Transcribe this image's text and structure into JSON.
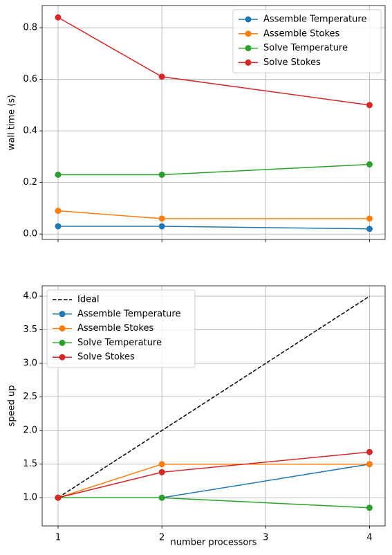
{
  "chart_data": [
    {
      "type": "line",
      "ylabel": "wall time (s)",
      "x": [
        1,
        2,
        4
      ],
      "xlim": [
        0.847,
        4.15
      ],
      "xticks": [
        1,
        2,
        3,
        4
      ],
      "xtick_labels": false,
      "ylim": [
        -0.021,
        0.886
      ],
      "yticks": [
        {
          "value": 0,
          "label": "0.0"
        },
        0.2,
        0.4,
        0.6,
        0.8
      ],
      "grid": true,
      "legend": "upper right",
      "series": [
        {
          "name": "Assemble Temperature",
          "color": "#1f77b4",
          "marker": "o",
          "values": [
            0.03,
            0.03,
            0.02
          ]
        },
        {
          "name": "Assemble Stokes",
          "color": "#ff7f0e",
          "marker": "o",
          "values": [
            0.09,
            0.06,
            0.06
          ]
        },
        {
          "name": "Solve Temperature",
          "color": "#2ca02c",
          "marker": "o",
          "values": [
            0.23,
            0.23,
            0.27
          ]
        },
        {
          "name": "Solve Stokes",
          "color": "#d62728",
          "marker": "o",
          "values": [
            0.84,
            0.61,
            0.5
          ]
        }
      ]
    },
    {
      "type": "line",
      "ylabel": "speed up",
      "xlabel": "number processors",
      "x": [
        1,
        2,
        4
      ],
      "xlim": [
        0.847,
        4.15
      ],
      "xticks": [
        1,
        2,
        3,
        4
      ],
      "xtick_labels": true,
      "ylim": [
        0.58,
        4.155
      ],
      "yticks": [
        {
          "value": 1,
          "label": "1.0"
        },
        1.5,
        {
          "value": 2,
          "label": "2.0"
        },
        2.5,
        {
          "value": 3,
          "label": "3.0"
        },
        3.5,
        {
          "value": 4,
          "label": "4.0"
        }
      ],
      "grid": true,
      "legend": "upper left",
      "series": [
        {
          "name": "Ideal",
          "color": "#000000",
          "dash": true,
          "values": [
            1,
            2,
            4
          ]
        },
        {
          "name": "Assemble Temperature",
          "color": "#1f77b4",
          "marker": "o",
          "values": [
            1,
            1,
            1.5
          ]
        },
        {
          "name": "Assemble Stokes",
          "color": "#ff7f0e",
          "marker": "o",
          "values": [
            1,
            1.5,
            1.5
          ]
        },
        {
          "name": "Solve Temperature",
          "color": "#2ca02c",
          "marker": "o",
          "values": [
            1,
            1,
            0.85
          ]
        },
        {
          "name": "Solve Stokes",
          "color": "#d62728",
          "marker": "o",
          "values": [
            1,
            1.38,
            1.68
          ]
        }
      ]
    }
  ]
}
